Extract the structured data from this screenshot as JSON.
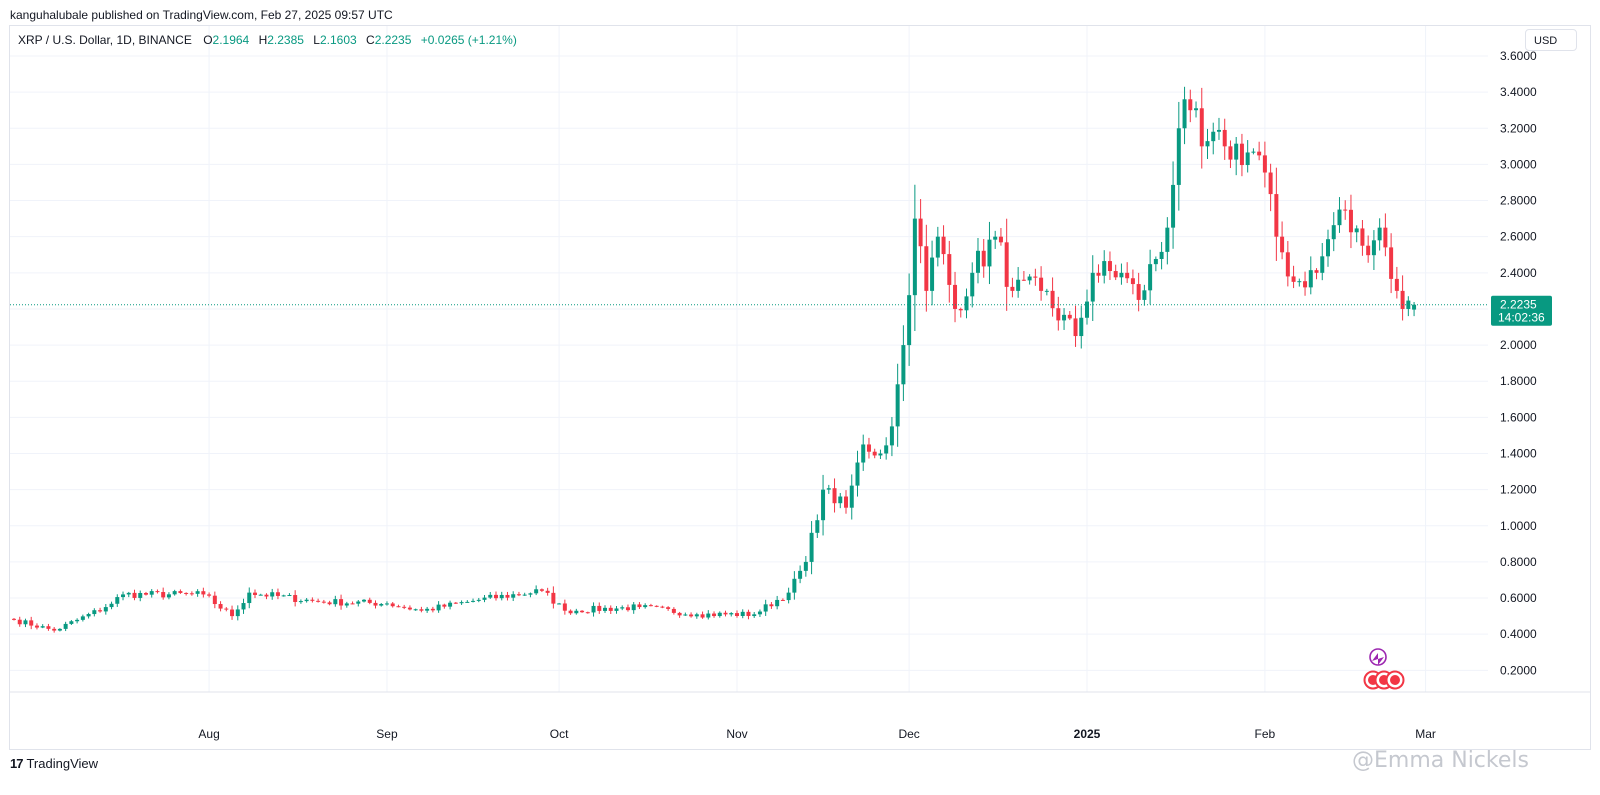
{
  "header": {
    "published": "kanguhalubale published on TradingView.com, Feb 27, 2025 09:57 UTC"
  },
  "legend": {
    "symbol": "XRP / U.S. Dollar, 1D, BINANCE",
    "open_label": "O",
    "open": "2.1964",
    "high_label": "H",
    "high": "2.2385",
    "low_label": "L",
    "low": "2.1603",
    "close_label": "C",
    "close": "2.2235",
    "change": "+0.0265 (+1.21%)"
  },
  "currency_button": "USD",
  "price_tag": {
    "price": "2.2235",
    "countdown": "14:02:36"
  },
  "footer": {
    "brand": "TradingView",
    "brand_icon": "tradingview-logo-icon"
  },
  "watermark": "@Emma Nickels",
  "colors": {
    "up": "#089981",
    "down": "#f23645",
    "grid": "#f0f3fa",
    "axis_text": "#131722"
  },
  "chart_data": {
    "type": "candlestick",
    "title": "",
    "xlabel": "",
    "ylabel": "",
    "ylim": [
      0.08,
      3.6
    ],
    "y_ticks": [
      "0.2000",
      "0.4000",
      "0.6000",
      "0.8000",
      "1.0000",
      "1.2000",
      "1.4000",
      "1.6000",
      "1.8000",
      "2.0000",
      "2.2000",
      "2.4000",
      "2.6000",
      "2.8000",
      "3.0000",
      "3.2000",
      "3.4000",
      "3.6000"
    ],
    "x_ticks": [
      {
        "label": "Aug",
        "date": "2024-08-01"
      },
      {
        "label": "Sep",
        "date": "2024-09-01"
      },
      {
        "label": "Oct",
        "date": "2024-10-01"
      },
      {
        "label": "Nov",
        "date": "2024-11-01"
      },
      {
        "label": "Dec",
        "date": "2024-12-01"
      },
      {
        "label": "2025",
        "date": "2025-01-01",
        "bold": true
      },
      {
        "label": "Feb",
        "date": "2025-02-01"
      },
      {
        "label": "Mar",
        "date": "2025-03-01"
      }
    ],
    "current_price": 2.2235,
    "key_points": [
      {
        "date": "2024-06-28",
        "close": 0.48
      },
      {
        "date": "2024-07-05",
        "close": 0.42
      },
      {
        "date": "2024-07-14",
        "close": 0.55
      },
      {
        "date": "2024-07-17",
        "close": 0.62
      },
      {
        "date": "2024-07-31",
        "close": 0.62
      },
      {
        "date": "2024-08-05",
        "close": 0.5
      },
      {
        "date": "2024-08-08",
        "close": 0.63
      },
      {
        "date": "2024-08-20",
        "close": 0.58
      },
      {
        "date": "2024-09-01",
        "close": 0.57
      },
      {
        "date": "2024-09-07",
        "close": 0.53
      },
      {
        "date": "2024-09-17",
        "close": 0.59
      },
      {
        "date": "2024-09-28",
        "close": 0.64
      },
      {
        "date": "2024-10-02",
        "close": 0.53
      },
      {
        "date": "2024-10-15",
        "close": 0.55
      },
      {
        "date": "2024-10-25",
        "close": 0.51
      },
      {
        "date": "2024-11-04",
        "close": 0.51
      },
      {
        "date": "2024-11-10",
        "close": 0.63
      },
      {
        "date": "2024-11-13",
        "close": 0.8
      },
      {
        "date": "2024-11-16",
        "close": 1.2
      },
      {
        "date": "2024-11-20",
        "close": 1.1
      },
      {
        "date": "2024-11-23",
        "close": 1.45
      },
      {
        "date": "2024-11-26",
        "close": 1.4
      },
      {
        "date": "2024-11-28",
        "close": 1.55
      },
      {
        "date": "2024-11-30",
        "close": 2.0
      },
      {
        "date": "2024-12-02",
        "close": 2.7
      },
      {
        "date": "2024-12-04",
        "close": 2.3
      },
      {
        "date": "2024-12-06",
        "close": 2.6
      },
      {
        "date": "2024-12-09",
        "close": 2.2
      },
      {
        "date": "2024-12-12",
        "close": 2.4
      },
      {
        "date": "2024-12-16",
        "close": 2.6
      },
      {
        "date": "2024-12-19",
        "close": 2.3
      },
      {
        "date": "2024-12-24",
        "close": 2.3
      },
      {
        "date": "2024-12-30",
        "close": 2.05
      },
      {
        "date": "2025-01-02",
        "close": 2.4
      },
      {
        "date": "2025-01-07",
        "close": 2.4
      },
      {
        "date": "2025-01-10",
        "close": 2.25
      },
      {
        "date": "2025-01-15",
        "close": 2.65
      },
      {
        "date": "2025-01-17",
        "close": 3.2
      },
      {
        "date": "2025-01-19",
        "close": 3.3
      },
      {
        "date": "2025-01-21",
        "close": 3.1
      },
      {
        "date": "2025-01-25",
        "close": 3.1
      },
      {
        "date": "2025-01-31",
        "close": 3.05
      },
      {
        "date": "2025-02-03",
        "close": 2.6
      },
      {
        "date": "2025-02-06",
        "close": 2.35
      },
      {
        "date": "2025-02-10",
        "close": 2.4
      },
      {
        "date": "2025-02-14",
        "close": 2.75
      },
      {
        "date": "2025-02-18",
        "close": 2.55
      },
      {
        "date": "2025-02-21",
        "close": 2.65
      },
      {
        "date": "2025-02-24",
        "close": 2.3
      },
      {
        "date": "2025-02-25",
        "close": 2.2
      },
      {
        "date": "2025-02-27",
        "close": 2.2235
      }
    ]
  }
}
